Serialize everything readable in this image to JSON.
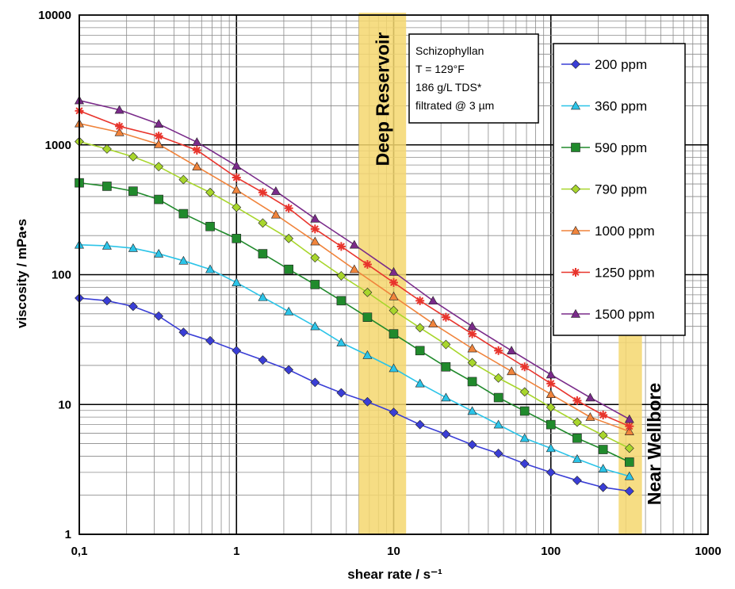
{
  "chart_data": {
    "type": "line",
    "xlabel": "shear rate / s⁻¹",
    "ylabel": "viscosity / mPa•s",
    "xscale": "log",
    "yscale": "log",
    "xlim": [
      0.1,
      1000
    ],
    "ylim": [
      1,
      10000
    ],
    "x_tick_labels": [
      "0,1",
      "1",
      "10",
      "100",
      "1000"
    ],
    "y_tick_labels": [
      "1",
      "10",
      "100",
      "1000",
      "10000"
    ],
    "grid": true,
    "legend_position": "top-right",
    "info_box": [
      "Schizophyllan",
      "T = 129°F",
      "186 g/L TDS*",
      "filtrated @ 3 µm"
    ],
    "zones": [
      {
        "label": "Deep Reservoir",
        "x_range": [
          6,
          12
        ],
        "color": "#f5d76e"
      },
      {
        "label": "Near Wellbore",
        "x_range": [
          270,
          380
        ],
        "color": "#f5d76e"
      }
    ],
    "series": [
      {
        "name": "200 ppm",
        "color": "#3a3ed6",
        "marker": "diamond",
        "x": [
          0.1,
          0.15,
          0.22,
          0.32,
          0.46,
          0.68,
          1,
          1.47,
          2.15,
          3.16,
          4.64,
          6.81,
          10,
          14.7,
          21.5,
          31.6,
          46.4,
          68.1,
          100,
          147,
          215,
          316
        ],
        "y": [
          66,
          63,
          57,
          48,
          36,
          31,
          26,
          22,
          18.5,
          14.8,
          12.3,
          10.5,
          8.7,
          7,
          5.9,
          4.9,
          4.2,
          3.5,
          3.0,
          2.6,
          2.3,
          2.15
        ]
      },
      {
        "name": "360 ppm",
        "color": "#2bc4e8",
        "marker": "triangle",
        "x": [
          0.1,
          0.15,
          0.22,
          0.32,
          0.46,
          0.68,
          1,
          1.47,
          2.15,
          3.16,
          4.64,
          6.81,
          10,
          14.7,
          21.5,
          31.6,
          46.4,
          68.1,
          100,
          147,
          215,
          316
        ],
        "y": [
          170,
          167,
          160,
          145,
          128,
          110,
          87,
          67,
          52,
          40,
          30,
          24,
          19,
          14.5,
          11.3,
          8.9,
          7,
          5.5,
          4.6,
          3.8,
          3.2,
          2.8
        ]
      },
      {
        "name": "590 ppm",
        "color": "#208a2c",
        "marker": "square",
        "x": [
          0.1,
          0.15,
          0.22,
          0.32,
          0.46,
          0.68,
          1,
          1.47,
          2.15,
          3.16,
          4.64,
          6.81,
          10,
          14.7,
          21.5,
          31.6,
          46.4,
          68.1,
          100,
          147,
          215,
          316
        ],
        "y": [
          510,
          480,
          440,
          380,
          295,
          235,
          190,
          145,
          110,
          84,
          63,
          47,
          35,
          26,
          19.5,
          15,
          11.3,
          8.9,
          7,
          5.5,
          4.5,
          3.6
        ]
      },
      {
        "name": "790 ppm",
        "color": "#a8d62c",
        "marker": "diamond",
        "x": [
          0.1,
          0.15,
          0.22,
          0.32,
          0.46,
          0.68,
          1,
          1.47,
          2.15,
          3.16,
          4.64,
          6.81,
          10,
          14.7,
          21.5,
          31.6,
          46.4,
          68.1,
          100,
          147,
          215,
          316
        ],
        "y": [
          1060,
          930,
          810,
          680,
          540,
          430,
          330,
          250,
          190,
          135,
          98,
          73,
          53,
          39,
          29,
          21,
          16,
          12.5,
          9.5,
          7.3,
          5.8,
          4.6
        ]
      },
      {
        "name": "1000 ppm",
        "color": "#f0843c",
        "marker": "triangle",
        "x": [
          0.1,
          0.18,
          0.32,
          0.56,
          1,
          1.78,
          3.16,
          5.62,
          10,
          17.8,
          31.6,
          56.2,
          100,
          178,
          316
        ],
        "y": [
          1460,
          1250,
          1010,
          680,
          450,
          290,
          180,
          110,
          68,
          42,
          27,
          18,
          12,
          8,
          6.2
        ]
      },
      {
        "name": "1250 ppm",
        "color": "#e8342c",
        "marker": "star",
        "x": [
          0.1,
          0.18,
          0.32,
          0.56,
          1,
          1.47,
          2.15,
          3.16,
          4.64,
          6.81,
          10,
          14.7,
          21.5,
          31.6,
          46.4,
          68.1,
          100,
          147,
          215,
          316
        ],
        "y": [
          1830,
          1390,
          1170,
          910,
          560,
          430,
          325,
          225,
          165,
          120,
          87,
          63,
          47,
          35,
          26,
          19.5,
          14.5,
          10.7,
          8.3,
          6.8
        ]
      },
      {
        "name": "1500 ppm",
        "color": "#7a2b8a",
        "marker": "triangle",
        "x": [
          0.1,
          0.18,
          0.32,
          0.56,
          1,
          1.78,
          3.16,
          5.62,
          10,
          17.8,
          31.6,
          56.2,
          100,
          178,
          316
        ],
        "y": [
          2200,
          1860,
          1450,
          1050,
          690,
          440,
          270,
          170,
          105,
          63,
          40,
          26,
          17,
          11.3,
          7.7
        ]
      }
    ]
  }
}
